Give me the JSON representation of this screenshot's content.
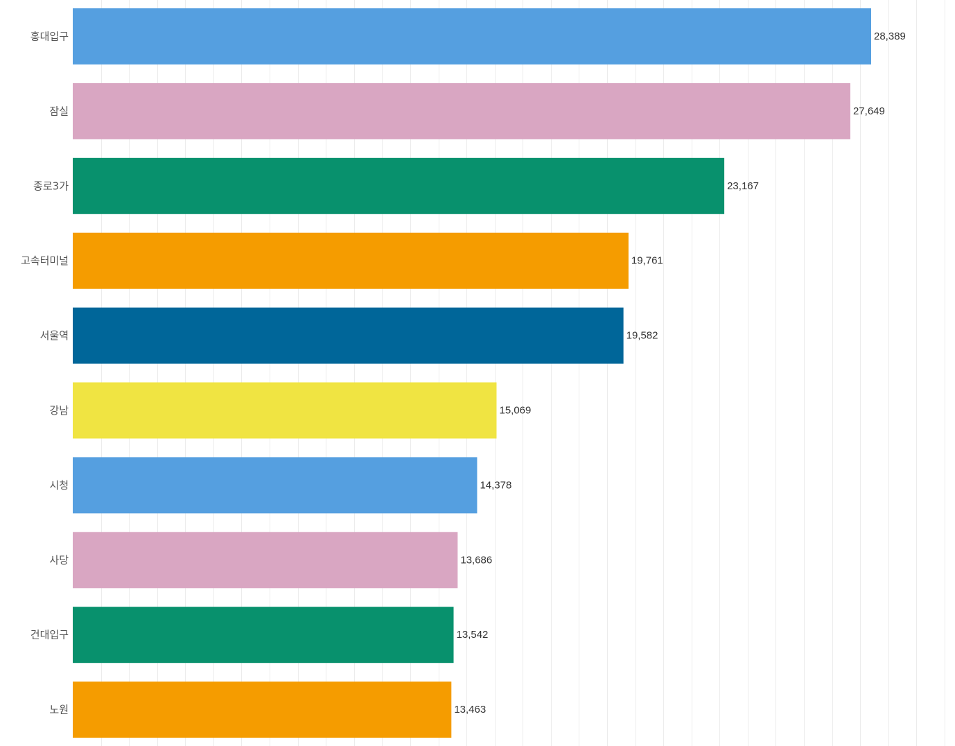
{
  "chart_data": {
    "type": "bar",
    "orientation": "horizontal",
    "title": "",
    "xlabel": "",
    "ylabel": "",
    "xlim": [
      0,
      31000
    ],
    "grid": true,
    "categories": [
      "홍대입구",
      "잠실",
      "종로3가",
      "고속터미널",
      "서울역",
      "강남",
      "시청",
      "사당",
      "건대입구",
      "노원"
    ],
    "values": [
      28389,
      27649,
      23167,
      19761,
      19582,
      15069,
      14378,
      13686,
      13542,
      13463
    ],
    "value_labels": [
      "28,389",
      "27,649",
      "23,167",
      "19,761",
      "19,582",
      "15,069",
      "14,378",
      "13,686",
      "13,542",
      "13,463"
    ],
    "colors": [
      "#559FE0",
      "#D9A6C2",
      "#08916D",
      "#F59C00",
      "#006699",
      "#F0E442",
      "#559FE0",
      "#D9A6C2",
      "#08916D",
      "#F59C00"
    ]
  }
}
